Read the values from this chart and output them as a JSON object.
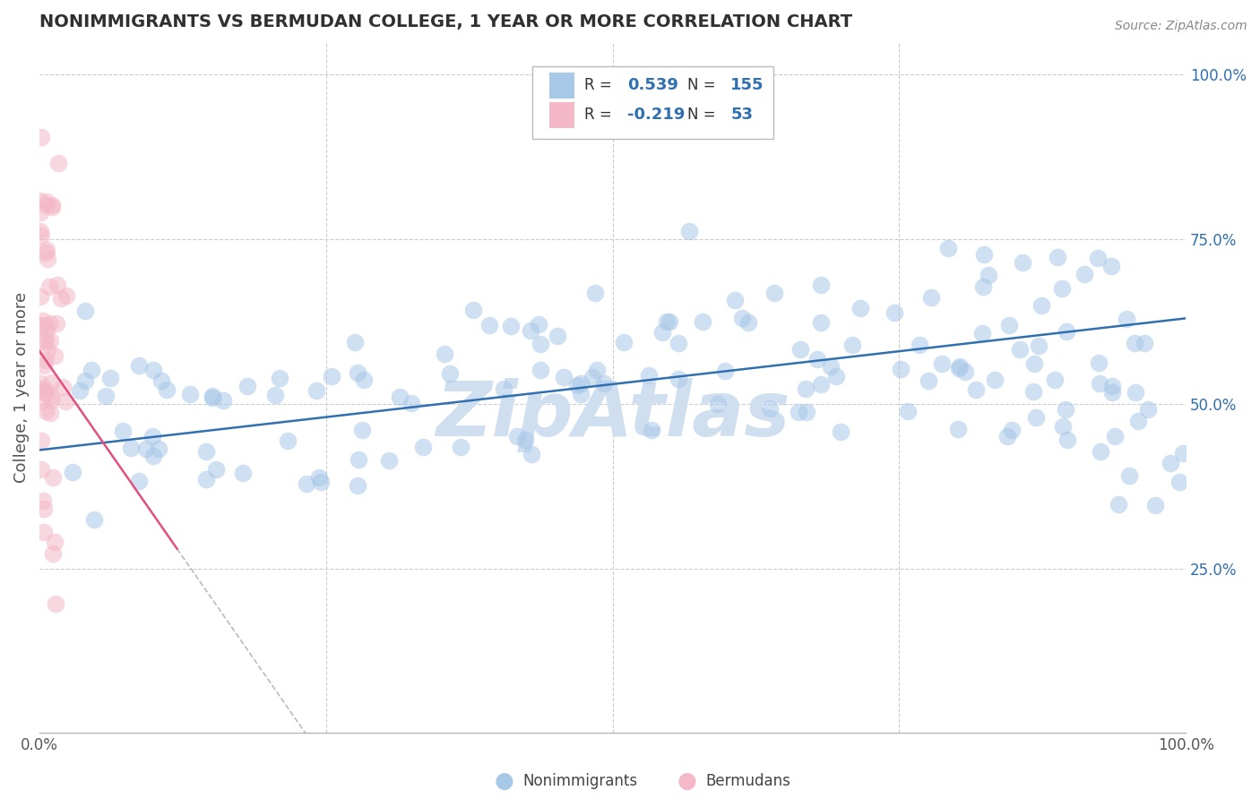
{
  "title": "NONIMMIGRANTS VS BERMUDAN COLLEGE, 1 YEAR OR MORE CORRELATION CHART",
  "source_text": "Source: ZipAtlas.com",
  "ylabel": "College, 1 year or more",
  "legend_labels": [
    "Nonimmigrants",
    "Bermudans"
  ],
  "r_nonimm": 0.539,
  "n_nonimm": 155,
  "r_berm": -0.219,
  "n_berm": 53,
  "blue_color": "#a8c8e8",
  "pink_color": "#f4b8c8",
  "blue_line_color": "#3070b0",
  "pink_line_color": "#e04070",
  "pink_trendline_color": "#e05080",
  "watermark_text": "ZipAtlas",
  "watermark_color": "#d0dff0",
  "background_color": "#ffffff",
  "grid_color": "#cccccc",
  "title_color": "#303030",
  "axis_label_color": "#555555",
  "legend_r_color": "#3070b0",
  "right_tick_color": "#3070b0",
  "seed": 42,
  "dot_size": 200,
  "dot_alpha": 0.55,
  "line_width": 1.8,
  "blue_intercept": 0.43,
  "blue_slope": 0.2,
  "pink_intercept": 0.58,
  "pink_slope": -2.5
}
